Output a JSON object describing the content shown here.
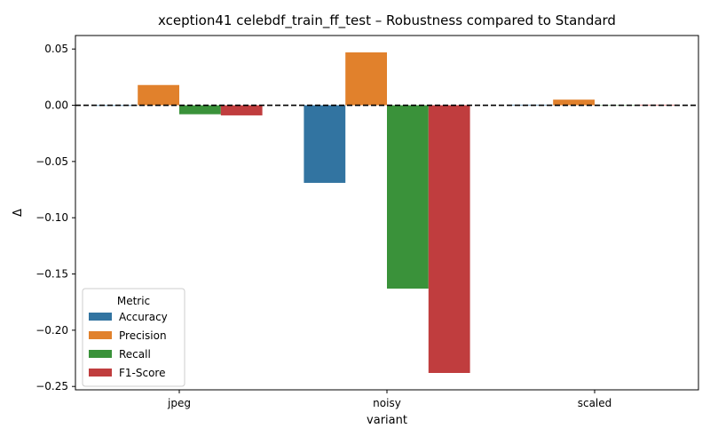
{
  "chart_data": {
    "type": "bar",
    "title": "xception41 celebdf_train_ff_test – Robustness compared to Standard",
    "xlabel": "variant",
    "ylabel": "Δ",
    "categories": [
      "jpeg",
      "noisy",
      "scaled"
    ],
    "ylim": [
      -0.253,
      0.062
    ],
    "yticks": [
      0.05,
      0.0,
      -0.05,
      -0.1,
      -0.15,
      -0.2,
      -0.25
    ],
    "ytick_labels": [
      "0.05",
      "0.00",
      "−0.05",
      "−0.10",
      "−0.15",
      "−0.20",
      "−0.25"
    ],
    "reference_line": {
      "y": 0,
      "style": "dashed",
      "color": "#000000"
    },
    "grid": false,
    "legend": {
      "title": "Metric",
      "position": "lower-left"
    },
    "series": [
      {
        "name": "Accuracy",
        "color": "#3274a1",
        "values": [
          -0.0005,
          -0.069,
          0.0005
        ]
      },
      {
        "name": "Precision",
        "color": "#e1812c",
        "values": [
          0.018,
          0.047,
          0.005
        ]
      },
      {
        "name": "Recall",
        "color": "#3a923a",
        "values": [
          -0.008,
          -0.163,
          0.0003
        ]
      },
      {
        "name": "F1-Score",
        "color": "#c03d3e",
        "values": [
          -0.009,
          -0.238,
          0.0005
        ]
      }
    ]
  }
}
